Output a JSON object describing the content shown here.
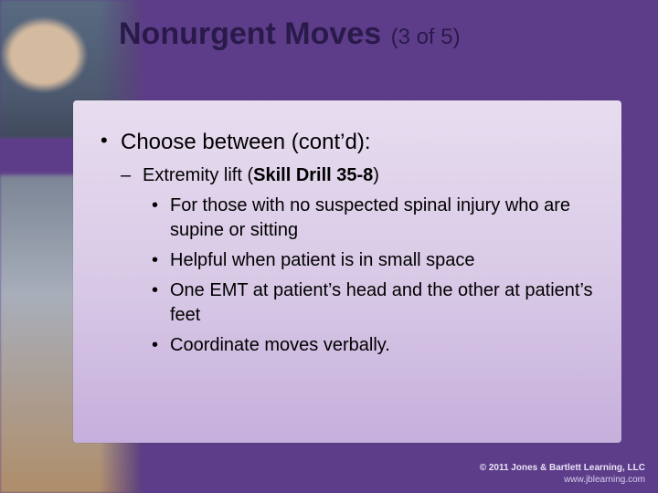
{
  "colors": {
    "slide_background": "#5d3d8a",
    "panel_gradient_top": "#e7ddef",
    "panel_gradient_mid": "#d8c8e6",
    "panel_gradient_bottom": "#c6afdc",
    "title_color": "#2a1a4a",
    "body_text_color": "#000000",
    "footer_text_color": "#cfc4e2"
  },
  "typography": {
    "font_family": "Arial",
    "title_main_size_pt": 26,
    "title_sub_size_pt": 18,
    "level1_size_pt": 18,
    "level2_size_pt": 15,
    "level3_size_pt": 15
  },
  "title": {
    "main": "Nonurgent Moves",
    "sub": "(3 of 5)"
  },
  "body": {
    "level1": "Choose between (cont’d):",
    "level2_prefix": "Extremity lift (",
    "level2_skill": "Skill Drill 35-8",
    "level2_suffix": ")",
    "level3": [
      "For those with no suspected spinal injury who are supine or sitting",
      "Helpful when patient is in small space",
      "One EMT at patient’s head and the other at patient’s feet",
      "Coordinate moves verbally."
    ]
  },
  "footer": {
    "copyright": "© 2011 Jones & Bartlett Learning, LLC",
    "url": "www.jblearning.com"
  }
}
